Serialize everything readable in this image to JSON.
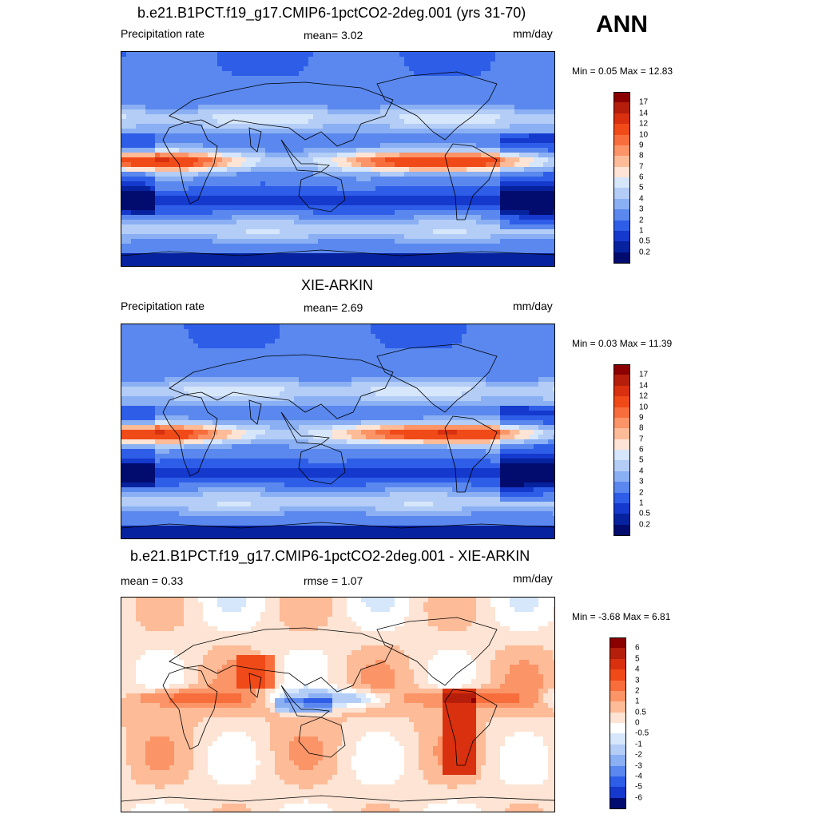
{
  "season": "ANN",
  "panels": [
    {
      "title": "b.e21.B1PCT.f19_g17.CMIP6-1pctCO2-2deg.001 (yrs 31-70)",
      "left_label": "Precipitation rate",
      "center_label": "mean=   3.02",
      "right_label": "mm/day",
      "minmax": "Min =   0.05 Max =  12.83",
      "map_kind": "precip",
      "colorbar": {
        "levels": [
          "17",
          "14",
          "12",
          "10",
          "9",
          "8",
          "7",
          "6",
          "5",
          "4",
          "3",
          "2",
          "1",
          "0.5",
          "0.2"
        ],
        "colors": [
          "#8b0000",
          "#b41e0a",
          "#d9300f",
          "#f04a18",
          "#f76e3c",
          "#fb9467",
          "#fdbb98",
          "#fde4d4",
          "#d6e6fb",
          "#b3cdf7",
          "#8aaff3",
          "#5a88ee",
          "#2e5ee8",
          "#1439cc",
          "#06229f",
          "#010c6e"
        ]
      }
    },
    {
      "title": "XIE-ARKIN",
      "left_label": "Precipitation rate",
      "center_label": "mean=   2.69",
      "right_label": "mm/day",
      "minmax": "Min =   0.03 Max =  11.39",
      "map_kind": "precip",
      "colorbar": {
        "levels": [
          "17",
          "14",
          "12",
          "10",
          "9",
          "8",
          "7",
          "6",
          "5",
          "4",
          "3",
          "2",
          "1",
          "0.5",
          "0.2"
        ],
        "colors": [
          "#8b0000",
          "#b41e0a",
          "#d9300f",
          "#f04a18",
          "#f76e3c",
          "#fb9467",
          "#fdbb98",
          "#fde4d4",
          "#d6e6fb",
          "#b3cdf7",
          "#8aaff3",
          "#5a88ee",
          "#2e5ee8",
          "#1439cc",
          "#06229f",
          "#010c6e"
        ]
      }
    },
    {
      "title": "b.e21.B1PCT.f19_g17.CMIP6-1pctCO2-2deg.001 - XIE-ARKIN",
      "left_label": "mean =   0.33",
      "center_label": "rmse =   1.07",
      "right_label": "mm/day",
      "minmax": "Min =  -3.68 Max =   6.81",
      "map_kind": "diff",
      "colorbar": {
        "levels": [
          "6",
          "5",
          "4",
          "3",
          "2",
          "1",
          "0.5",
          "0",
          "-0.5",
          "-1",
          "-2",
          "-3",
          "-4",
          "-5",
          "-6"
        ],
        "colors": [
          "#8b0000",
          "#b41e0a",
          "#d9300f",
          "#f04a18",
          "#f76e3c",
          "#fb9467",
          "#fdbb98",
          "#fde4d4",
          "#ffffff",
          "#d6e6fb",
          "#b3cdf7",
          "#8aaff3",
          "#5a88ee",
          "#2e5ee8",
          "#1439cc",
          "#010c6e"
        ]
      }
    }
  ]
}
